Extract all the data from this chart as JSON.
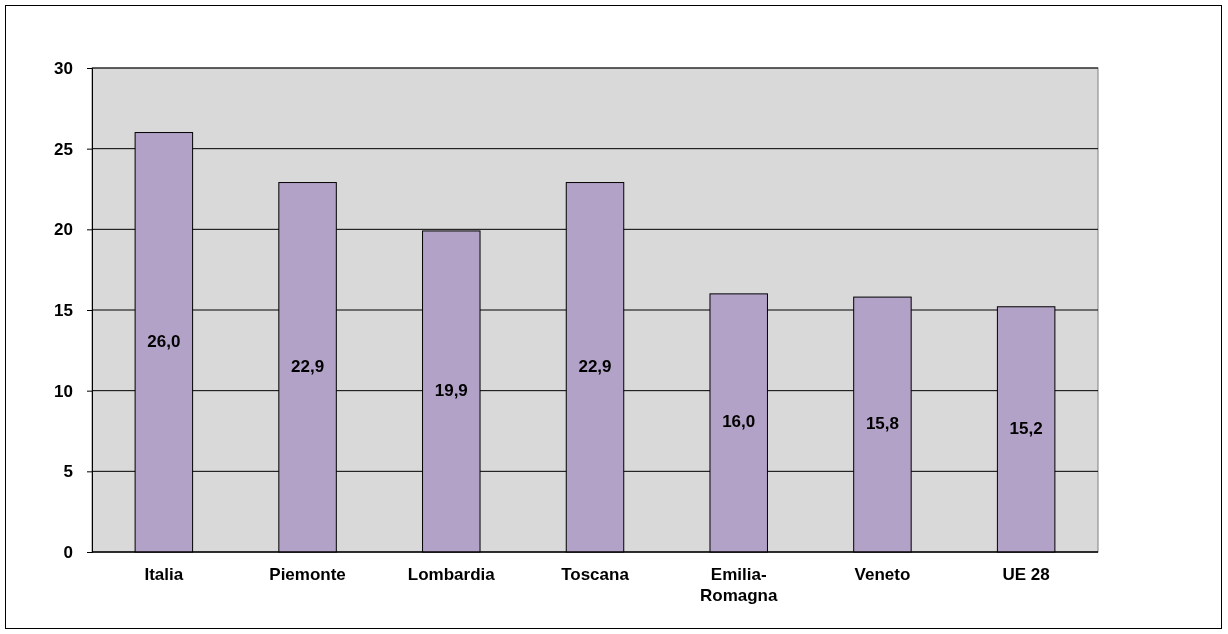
{
  "chart_data": {
    "type": "bar",
    "categories": [
      "Italia",
      "Piemonte",
      "Lombardia",
      "Toscana",
      "Emilia-Romagna",
      "Veneto",
      "UE 28"
    ],
    "values": [
      26.0,
      22.9,
      19.9,
      22.9,
      16.0,
      15.8,
      15.2
    ],
    "value_labels": [
      "26,0",
      "22,9",
      "19,9",
      "22,9",
      "16,0",
      "15,8",
      "15,2"
    ],
    "color": "#b3a2c7",
    "ylim": [
      0,
      30
    ],
    "yticks": [
      0,
      5,
      10,
      15,
      20,
      25,
      30
    ],
    "grid": "y"
  }
}
